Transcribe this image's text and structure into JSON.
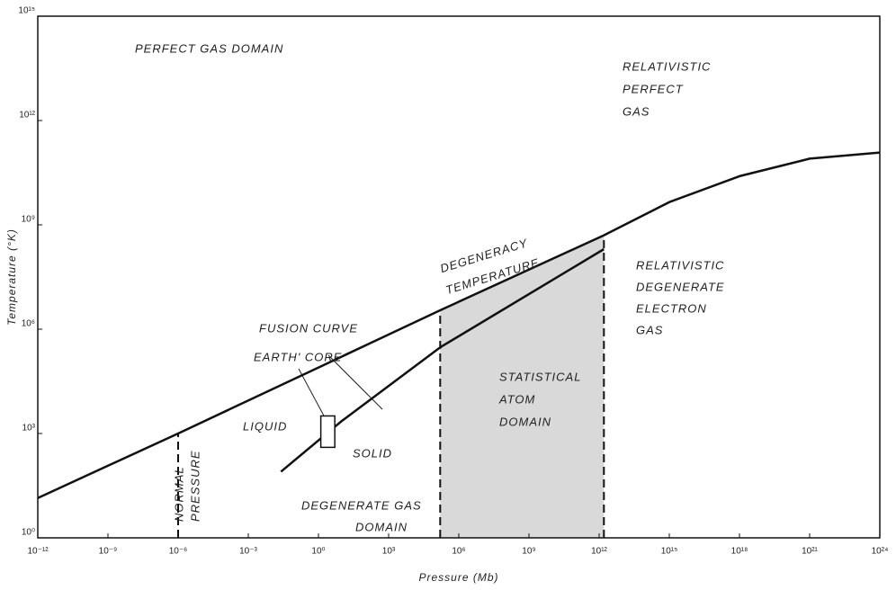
{
  "chart_data": {
    "type": "line",
    "xlabel": "Pressure (Mb)",
    "ylabel": "Temperature (°K)",
    "log_x": true,
    "log_y": true,
    "xlim": [
      1e-12,
      1e+24
    ],
    "ylim": [
      1,
      1000000000000000.0
    ],
    "xticks": [
      {
        "value": 1e-12,
        "label": "10⁻¹²"
      },
      {
        "value": 1e-09,
        "label": "10⁻⁹"
      },
      {
        "value": 1e-06,
        "label": "10⁻⁶"
      },
      {
        "value": 0.001,
        "label": "10⁻³"
      },
      {
        "value": 1,
        "label": "10⁰"
      },
      {
        "value": 1000.0,
        "label": "10³"
      },
      {
        "value": 1000000.0,
        "label": "10⁶"
      },
      {
        "value": 1000000000.0,
        "label": "10⁹"
      },
      {
        "value": 1000000000000.0,
        "label": "10¹²"
      },
      {
        "value": 1000000000000000.0,
        "label": "10¹⁵"
      },
      {
        "value": 1e+18,
        "label": "10¹⁸"
      },
      {
        "value": 1e+21,
        "label": "10²¹"
      },
      {
        "value": 1e+24,
        "label": "10²⁴"
      }
    ],
    "yticks": [
      {
        "value": 1,
        "label": "10⁰"
      },
      {
        "value": 1000.0,
        "label": "10³"
      },
      {
        "value": 1000000.0,
        "label": "10⁶"
      },
      {
        "value": 1000000000.0,
        "label": "10⁹"
      },
      {
        "value": 1000000000000.0,
        "label": "10¹²"
      },
      {
        "value": 1000000000000000.0,
        "label": "10¹⁵"
      }
    ],
    "series": [
      {
        "color": "#111111",
        "x": [
          1e-12,
          1e-06,
          160000.0,
          1600000000000.0,
          1000000000000000.0,
          1e+18,
          1e+21,
          1e+24
        ],
        "values": [
          14,
          1000,
          3500000.0,
          500000000.0,
          4500000000.0,
          25000000000.0,
          80000000000.0,
          120000000000.0
        ]
      },
      {
        "color": "#111111",
        "x": [
          0.025,
          10,
          160000.0,
          1600000000000.0
        ],
        "values": [
          80,
          2300,
          300000.0,
          200000000.0
        ]
      }
    ],
    "shaded_region": {
      "x": [
        160000.0,
        1600000000000.0
      ],
      "color": "#cfcfcf"
    },
    "normal_pressure_line": 1e-06,
    "earth_core_box": {
      "x": [
        1.26,
        5
      ],
      "y": [
        400,
        3200
      ]
    },
    "annotations": [
      [
        "PERFECT GAS DOMAIN"
      ],
      [
        "RELATIVISTIC",
        "PERFECT",
        "GAS"
      ],
      [
        "DEGENERACY",
        "TEMPERATURE"
      ],
      [
        "FUSION CURVE"
      ],
      [
        "EARTH' CORE"
      ],
      [
        "LIQUID"
      ],
      [
        "SOLID"
      ],
      [
        "STATISTICAL",
        "ATOM",
        "DOMAIN"
      ],
      [
        "RELATIVISTIC",
        "DEGENERATE",
        "ELECTRON",
        "GAS"
      ],
      [
        "DEGENERATE GAS",
        "DOMAIN"
      ],
      [
        "NORMAL",
        "PRESSURE"
      ]
    ]
  }
}
